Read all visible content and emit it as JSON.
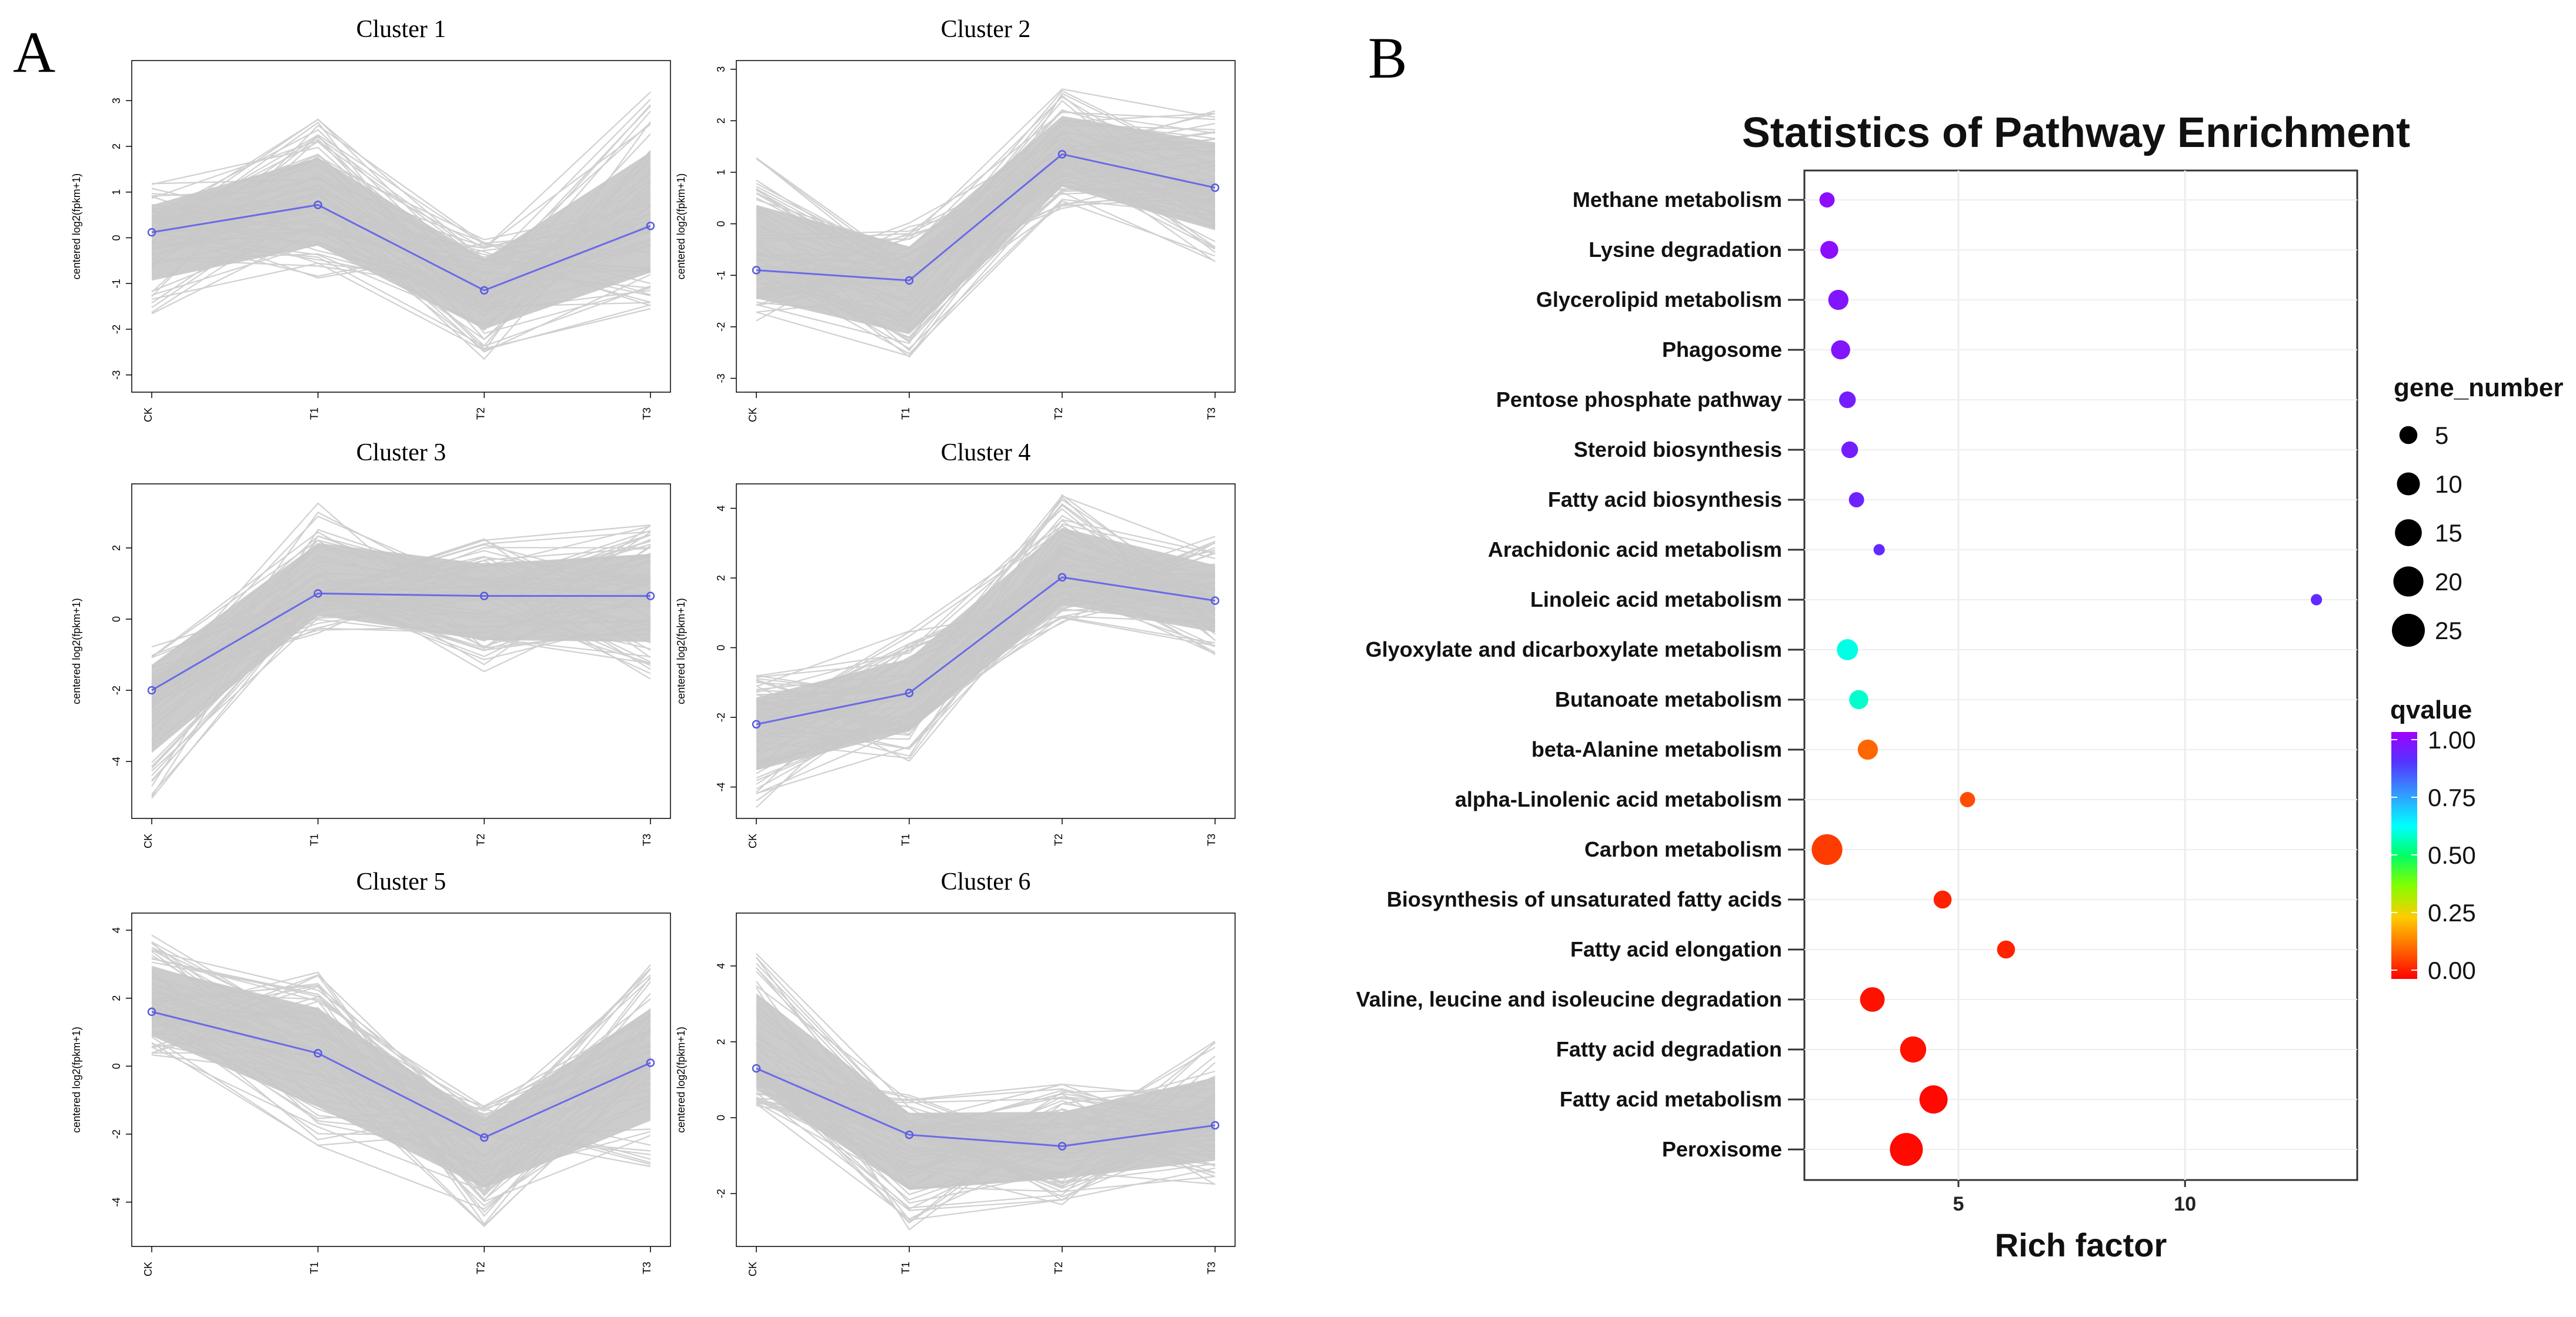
{
  "panel_a": {
    "letter": "A"
  },
  "panel_b": {
    "letter": "B"
  },
  "chart_data": [
    {
      "type": "line",
      "title": "Cluster 1",
      "ylabel": "centered log2(fpkm+1)",
      "categories": [
        "CK",
        "T1",
        "T2",
        "T3"
      ],
      "yticks": [
        -3,
        -2,
        -1,
        0,
        1,
        2,
        3
      ],
      "ylim": [
        -3.3,
        3.8
      ],
      "band_low": [
        -1.8,
        -0.9,
        -2.7,
        -1.6
      ],
      "band_high": [
        1.2,
        2.6,
        0.1,
        3.2
      ],
      "series": [
        {
          "name": "centroid",
          "values": [
            0.12,
            0.72,
            -1.15,
            0.26
          ]
        }
      ]
    },
    {
      "type": "line",
      "title": "Cluster 2",
      "ylabel": "centered log2(fpkm+1)",
      "categories": [
        "CK",
        "T1",
        "T2",
        "T3"
      ],
      "yticks": [
        -3,
        -2,
        -1,
        0,
        1,
        2,
        3
      ],
      "ylim": [
        -3.2,
        3.1
      ],
      "band_low": [
        -1.9,
        -3.0,
        0.2,
        -0.8
      ],
      "band_high": [
        1.4,
        0.1,
        2.7,
        2.3
      ],
      "series": [
        {
          "name": "centroid",
          "values": [
            -0.9,
            -1.1,
            1.35,
            0.7
          ]
        }
      ]
    },
    {
      "type": "line",
      "title": "Cluster 3",
      "ylabel": "centered log2(fpkm+1)",
      "categories": [
        "CK",
        "T1",
        "T2",
        "T3"
      ],
      "yticks": [
        -4,
        -2,
        0,
        2
      ],
      "ylim": [
        -5.5,
        3.7
      ],
      "band_low": [
        -5.2,
        -0.4,
        -1.6,
        -1.7
      ],
      "band_high": [
        -0.7,
        3.3,
        2.3,
        2.8
      ],
      "series": [
        {
          "name": "centroid",
          "values": [
            -2.0,
            0.72,
            0.65,
            0.65
          ]
        }
      ]
    },
    {
      "type": "line",
      "title": "Cluster 4",
      "ylabel": "centered log2(fpkm+1)",
      "categories": [
        "CK",
        "T1",
        "T2",
        "T3"
      ],
      "yticks": [
        -4,
        -2,
        0,
        2,
        4
      ],
      "ylim": [
        -4.8,
        4.6
      ],
      "band_low": [
        -4.6,
        -3.3,
        0.6,
        -0.3
      ],
      "band_high": [
        -0.8,
        0.5,
        4.6,
        3.2
      ],
      "series": [
        {
          "name": "centroid",
          "values": [
            -2.2,
            -1.3,
            2.02,
            1.35
          ]
        }
      ]
    },
    {
      "type": "line",
      "title": "Cluster 5",
      "ylabel": "centered log2(fpkm+1)",
      "categories": [
        "CK",
        "T1",
        "T2",
        "T3"
      ],
      "yticks": [
        -4,
        -2,
        0,
        2,
        4
      ],
      "ylim": [
        -5.2,
        4.4
      ],
      "band_low": [
        0.3,
        -2.5,
        -4.8,
        -3.0
      ],
      "band_high": [
        4.0,
        2.8,
        -1.1,
        3.0
      ],
      "series": [
        {
          "name": "centroid",
          "values": [
            1.6,
            0.38,
            -2.1,
            0.1
          ]
        }
      ]
    },
    {
      "type": "line",
      "title": "Cluster 6",
      "ylabel": "centered log2(fpkm+1)",
      "categories": [
        "CK",
        "T1",
        "T2",
        "T3"
      ],
      "yticks": [
        -2,
        0,
        2,
        4
      ],
      "ylim": [
        -3.3,
        5.3
      ],
      "band_low": [
        0.3,
        -3.1,
        -2.3,
        -1.9
      ],
      "band_high": [
        4.9,
        0.6,
        0.9,
        2.1
      ],
      "series": [
        {
          "name": "centroid",
          "values": [
            1.3,
            -0.45,
            -0.75,
            -0.2
          ]
        }
      ]
    },
    {
      "type": "scatter",
      "title": "Statistics of Pathway Enrichment",
      "xlabel": "Rich factor",
      "xticks": [
        5,
        10
      ],
      "xlim": [
        1.6,
        13.8
      ],
      "pathways": [
        "Methane metabolism",
        "Lysine degradation",
        "Glycerolipid metabolism",
        "Phagosome",
        "Pentose phosphate pathway",
        "Steroid biosynthesis",
        "Fatty acid biosynthesis",
        "Arachidonic acid metabolism",
        "Linoleic acid metabolism",
        "Glyoxylate and dicarboxylate metabolism",
        "Butanoate metabolism",
        "beta-Alanine metabolism",
        "alpha-Linolenic acid metabolism",
        "Carbon metabolism",
        "Biosynthesis of unsaturated fatty acids",
        "Fatty acid elongation",
        "Valine, leucine and isoleucine degradation",
        "Fatty acid degradation",
        "Fatty acid metabolism",
        "Peroxisome"
      ],
      "rich_factor": [
        2.1,
        2.15,
        2.35,
        2.4,
        2.55,
        2.6,
        2.75,
        3.25,
        12.9,
        2.55,
        2.8,
        3.0,
        5.2,
        2.1,
        4.65,
        6.05,
        3.1,
        4.0,
        4.45,
        3.85
      ],
      "gene_number": [
        3,
        5,
        7,
        6,
        4,
        4,
        3,
        1,
        1,
        8,
        6,
        7,
        3,
        21,
        5,
        5,
        12,
        14,
        17,
        25
      ],
      "qvalue": [
        0.97,
        0.97,
        0.95,
        0.95,
        0.93,
        0.93,
        0.92,
        0.9,
        0.9,
        0.6,
        0.58,
        0.12,
        0.09,
        0.07,
        0.04,
        0.04,
        0.02,
        0.02,
        0.01,
        0.01
      ],
      "size_legend": {
        "title": "gene_number",
        "values": [
          5,
          10,
          15,
          20,
          25
        ]
      },
      "color_legend": {
        "title": "qvalue",
        "values": [
          "1.00",
          "0.75",
          "0.50",
          "0.25",
          "0.00"
        ]
      },
      "colors": {
        "low": "#ff0000",
        "high": "#7f00ff"
      }
    }
  ]
}
